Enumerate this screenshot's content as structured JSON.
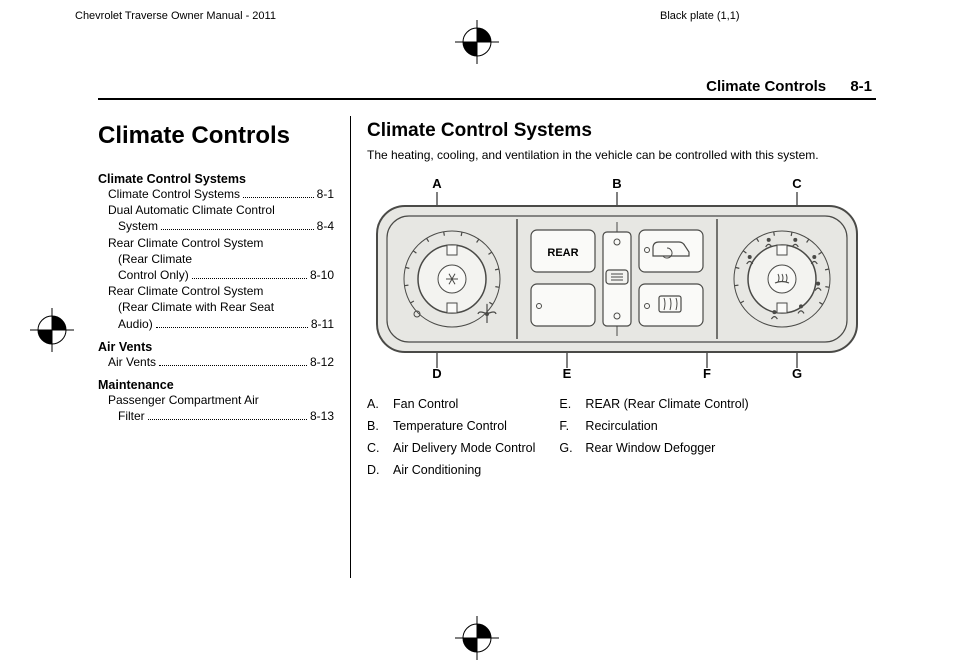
{
  "header": {
    "manualTitle": "Chevrolet Traverse Owner Manual - 2011",
    "plate": "Black plate (1,1)",
    "section": "Climate Controls",
    "pageId": "8-1"
  },
  "chapterTitle": "Climate Controls",
  "toc": {
    "groups": [
      {
        "title": "Climate Control Systems",
        "entries": [
          {
            "lines": [
              "Climate Control Systems"
            ],
            "page": "8-1"
          },
          {
            "lines": [
              "Dual Automatic Climate Control",
              "System"
            ],
            "page": "8-4"
          },
          {
            "lines": [
              "Rear Climate Control System",
              "(Rear Climate",
              "Control Only)"
            ],
            "page": "8-10"
          },
          {
            "lines": [
              "Rear Climate Control System",
              "(Rear Climate with Rear Seat",
              "Audio)"
            ],
            "page": "8-11"
          }
        ]
      },
      {
        "title": "Air Vents",
        "entries": [
          {
            "lines": [
              "Air Vents"
            ],
            "page": "8-12"
          }
        ]
      },
      {
        "title": "Maintenance",
        "entries": [
          {
            "lines": [
              "Passenger Compartment Air",
              "Filter"
            ],
            "page": "8-13"
          }
        ]
      }
    ]
  },
  "body": {
    "sectionTitle": "Climate Control Systems",
    "intro": "The heating, cooling, and ventilation in the vehicle can be controlled with this system.",
    "figure": {
      "labels": {
        "A": "A",
        "B": "B",
        "C": "C",
        "D": "D",
        "E": "E",
        "F": "F",
        "G": "G"
      },
      "rearText": "REAR",
      "colors": {
        "panelFill": "#e7e7e3",
        "panelStroke": "#4a4a47",
        "knobFill": "#f3f3f0",
        "btnFill": "#fafaf8"
      }
    },
    "legendLeft": [
      {
        "l": "A.",
        "t": "Fan Control"
      },
      {
        "l": "B.",
        "t": "Temperature Control"
      },
      {
        "l": "C.",
        "t": "Air Delivery Mode Control"
      },
      {
        "l": "D.",
        "t": "Air Conditioning"
      }
    ],
    "legendRight": [
      {
        "l": "E.",
        "t": "REAR (Rear Climate Control)"
      },
      {
        "l": "F.",
        "t": "Recirculation"
      },
      {
        "l": "G.",
        "t": "Rear Window Defogger"
      }
    ]
  }
}
